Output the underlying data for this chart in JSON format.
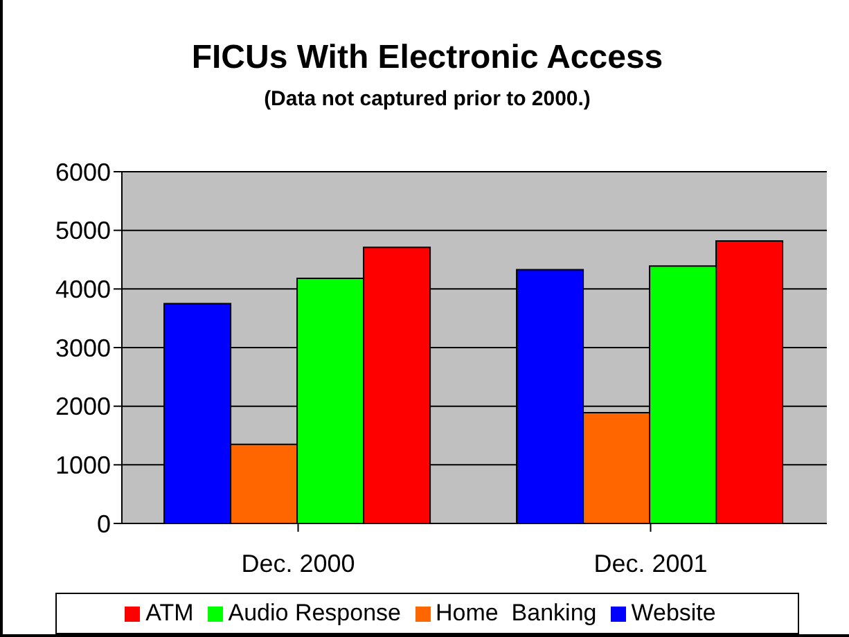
{
  "chart_data": {
    "type": "bar",
    "title": "FICUs With Electronic Access",
    "subtitle": "(Data not captured prior to 2000.)",
    "categories": [
      "Dec. 2000",
      "Dec. 2001"
    ],
    "series": [
      {
        "name": "Website",
        "color": "#0000ff",
        "values": [
          3750,
          4330
        ]
      },
      {
        "name": "Home  Banking",
        "color": "#ff6600",
        "values": [
          1350,
          1890
        ]
      },
      {
        "name": "Audio Response",
        "color": "#00ff00",
        "values": [
          4180,
          4390
        ]
      },
      {
        "name": "ATM",
        "color": "#ff0000",
        "values": [
          4710,
          4820
        ]
      }
    ],
    "ylim": [
      0,
      6000
    ],
    "yticks": [
      0,
      1000,
      2000,
      3000,
      4000,
      5000,
      6000
    ],
    "grid": "y",
    "legend": "bottom"
  }
}
